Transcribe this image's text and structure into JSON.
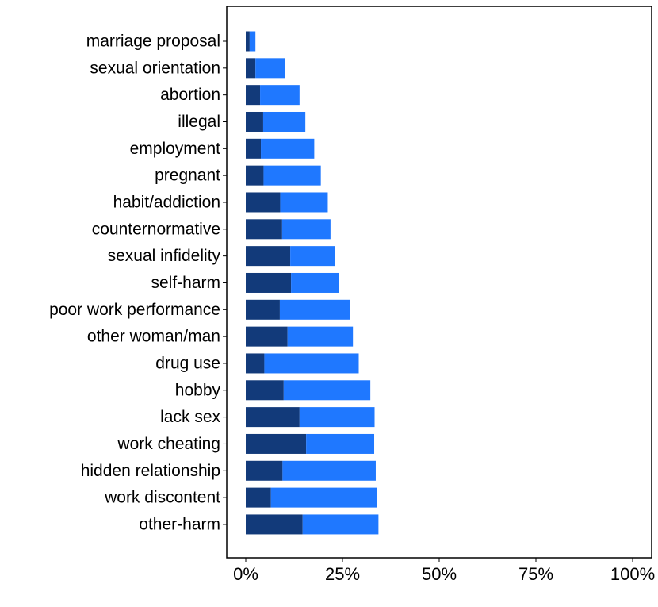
{
  "chart_data": {
    "type": "bar",
    "orientation": "horizontal",
    "stacked": true,
    "categories": [
      "marriage proposal",
      "sexual orientation",
      "abortion",
      "illegal",
      "employment",
      "pregnant",
      "habit/addiction",
      "counternormative",
      "sexual infidelity",
      "self-harm",
      "poor work performance",
      "other woman/man",
      "drug use",
      "hobby",
      "lack sex",
      "work cheating",
      "hidden relationship",
      "work discontent",
      "other-harm"
    ],
    "series": [
      {
        "color": "#123a7a",
        "values": [
          1.0,
          2.5,
          3.7,
          4.5,
          3.9,
          4.6,
          8.9,
          9.4,
          11.5,
          11.7,
          8.8,
          10.8,
          4.8,
          9.8,
          13.9,
          15.6,
          9.5,
          6.5,
          14.7
        ]
      },
      {
        "color": "#1f78ff",
        "values": [
          1.5,
          7.6,
          10.2,
          10.9,
          13.8,
          14.8,
          12.3,
          12.5,
          11.6,
          12.3,
          18.2,
          16.9,
          24.4,
          22.4,
          19.4,
          17.6,
          24.1,
          27.4,
          19.6
        ]
      }
    ],
    "xlim": [
      0,
      100
    ],
    "x_ticks": [
      "0%",
      "25%",
      "50%",
      "75%",
      "100%"
    ],
    "x_tick_values": [
      0,
      25,
      50,
      75,
      100
    ],
    "xlabel": "",
    "ylabel": "",
    "grid": false,
    "legend": "none"
  }
}
